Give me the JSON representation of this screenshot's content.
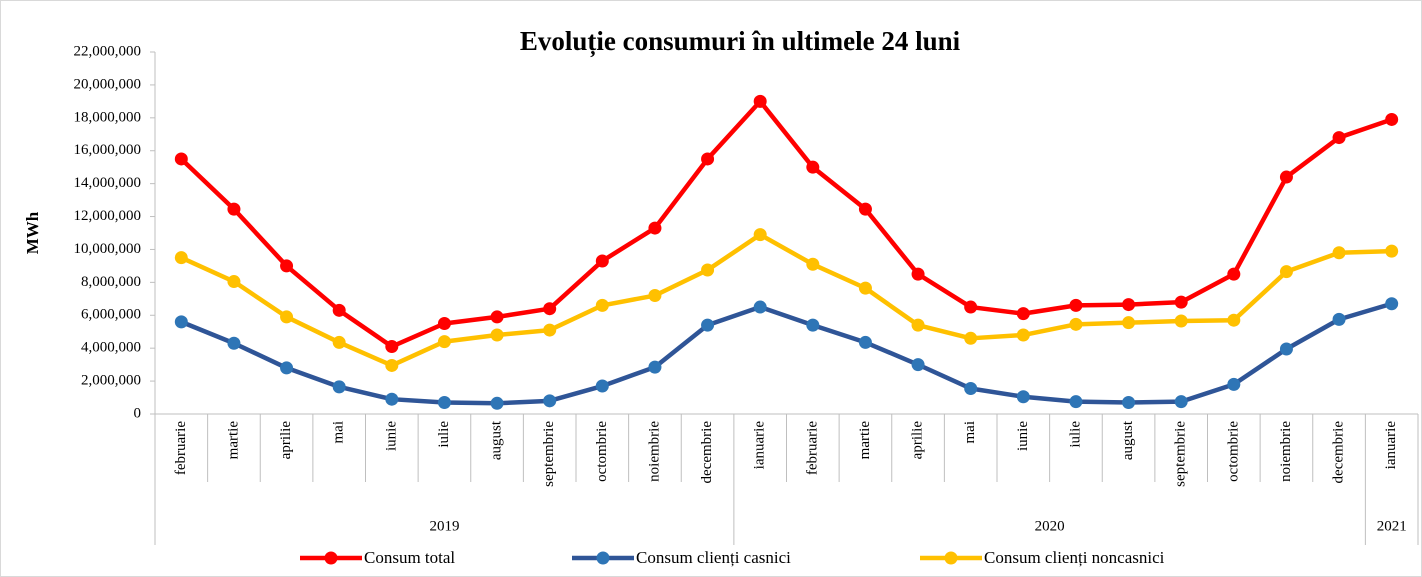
{
  "chart_data": {
    "type": "line",
    "title": "Evoluție consumuri în ultimele 24 luni",
    "y_label": "MWh",
    "categories": [
      "februarie",
      "martie",
      "aprilie",
      "mai",
      "iunie",
      "iulie",
      "august",
      "septembrie",
      "octombrie",
      "noiembrie",
      "decembrie",
      "ianuarie",
      "februarie",
      "martie",
      "aprilie",
      "mai",
      "iunie",
      "iulie",
      "august",
      "septembrie",
      "octombrie",
      "noiembrie",
      "decembrie",
      "ianuarie"
    ],
    "category_groups": [
      {
        "label": "2019",
        "count": 11
      },
      {
        "label": "2020",
        "count": 12
      },
      {
        "label": "2021",
        "count": 1
      }
    ],
    "ylim": [
      0,
      22000000
    ],
    "yticks": [
      0,
      {
        "value": 2000000,
        "label": "2,000,000"
      },
      {
        "value": 4000000,
        "label": "4,000,000"
      },
      {
        "value": 6000000,
        "label": "6,000,000"
      },
      {
        "value": 8000000,
        "label": "8,000,000"
      },
      {
        "value": 10000000,
        "label": "10,000,000"
      },
      {
        "value": 12000000,
        "label": "12,000,000"
      },
      {
        "value": 14000000,
        "label": "14,000,000"
      },
      {
        "value": 16000000,
        "label": "16,000,000"
      },
      {
        "value": 18000000,
        "label": "18,000,000"
      },
      {
        "value": 20000000,
        "label": "20,000,000"
      },
      {
        "value": 22000000,
        "label": "22,000,000"
      }
    ],
    "grid": false,
    "legend": "bottom",
    "series": [
      {
        "name": "Consum total",
        "color": "#ff0000",
        "values": [
          15500000,
          12450000,
          9000000,
          6300000,
          4100000,
          5500000,
          5900000,
          6400000,
          9300000,
          11300000,
          15500000,
          19000000,
          15000000,
          12450000,
          8500000,
          6500000,
          6100000,
          6600000,
          6650000,
          6800000,
          8500000,
          14400000,
          16800000,
          17900000
        ]
      },
      {
        "name": "Consum clienți casnici",
        "color": "#2f5597",
        "values": [
          5600000,
          4300000,
          2800000,
          1650000,
          900000,
          700000,
          650000,
          800000,
          1700000,
          2850000,
          5400000,
          6500000,
          5400000,
          4350000,
          3000000,
          1550000,
          1050000,
          750000,
          700000,
          750000,
          1800000,
          3950000,
          5750000,
          6700000
        ]
      },
      {
        "name": "Consum clienți noncasnici",
        "color": "#ffc000",
        "values": [
          9500000,
          8050000,
          5900000,
          4350000,
          2950000,
          4400000,
          4800000,
          5100000,
          6600000,
          7200000,
          8750000,
          10900000,
          9100000,
          7650000,
          5400000,
          4600000,
          4800000,
          5450000,
          5550000,
          5650000,
          5700000,
          8650000,
          9800000,
          9900000
        ]
      }
    ]
  }
}
